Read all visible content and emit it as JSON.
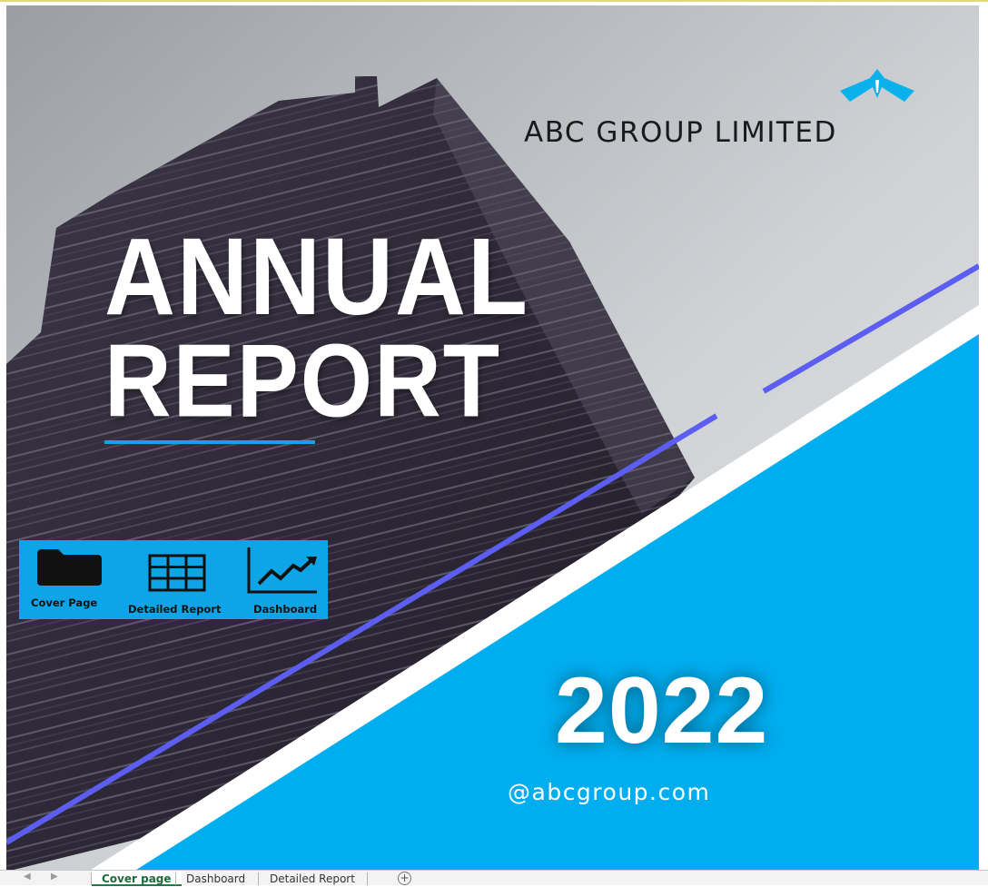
{
  "cover": {
    "company_name": "ABC GROUP LIMITED",
    "title_line1": "ANNUAL",
    "title_line2": "REPORT",
    "year": "2022",
    "website": "@abcgroup.com"
  },
  "nav_buttons": [
    {
      "label": "Cover Page",
      "icon": "folder-icon"
    },
    {
      "label": "Detailed Report",
      "icon": "table-grid-icon"
    },
    {
      "label": "Dashboard",
      "icon": "line-chart-icon"
    }
  ],
  "sheet_tabs": [
    {
      "label": "Cover page",
      "active": true
    },
    {
      "label": "Dashboard",
      "active": false
    },
    {
      "label": "Detailed Report",
      "active": false
    }
  ],
  "colors": {
    "accent_blue": "#00adef",
    "line_purple": "#5b5ef0",
    "nav_panel": "#0ea5e8",
    "active_tab_text": "#1e6b3a"
  }
}
